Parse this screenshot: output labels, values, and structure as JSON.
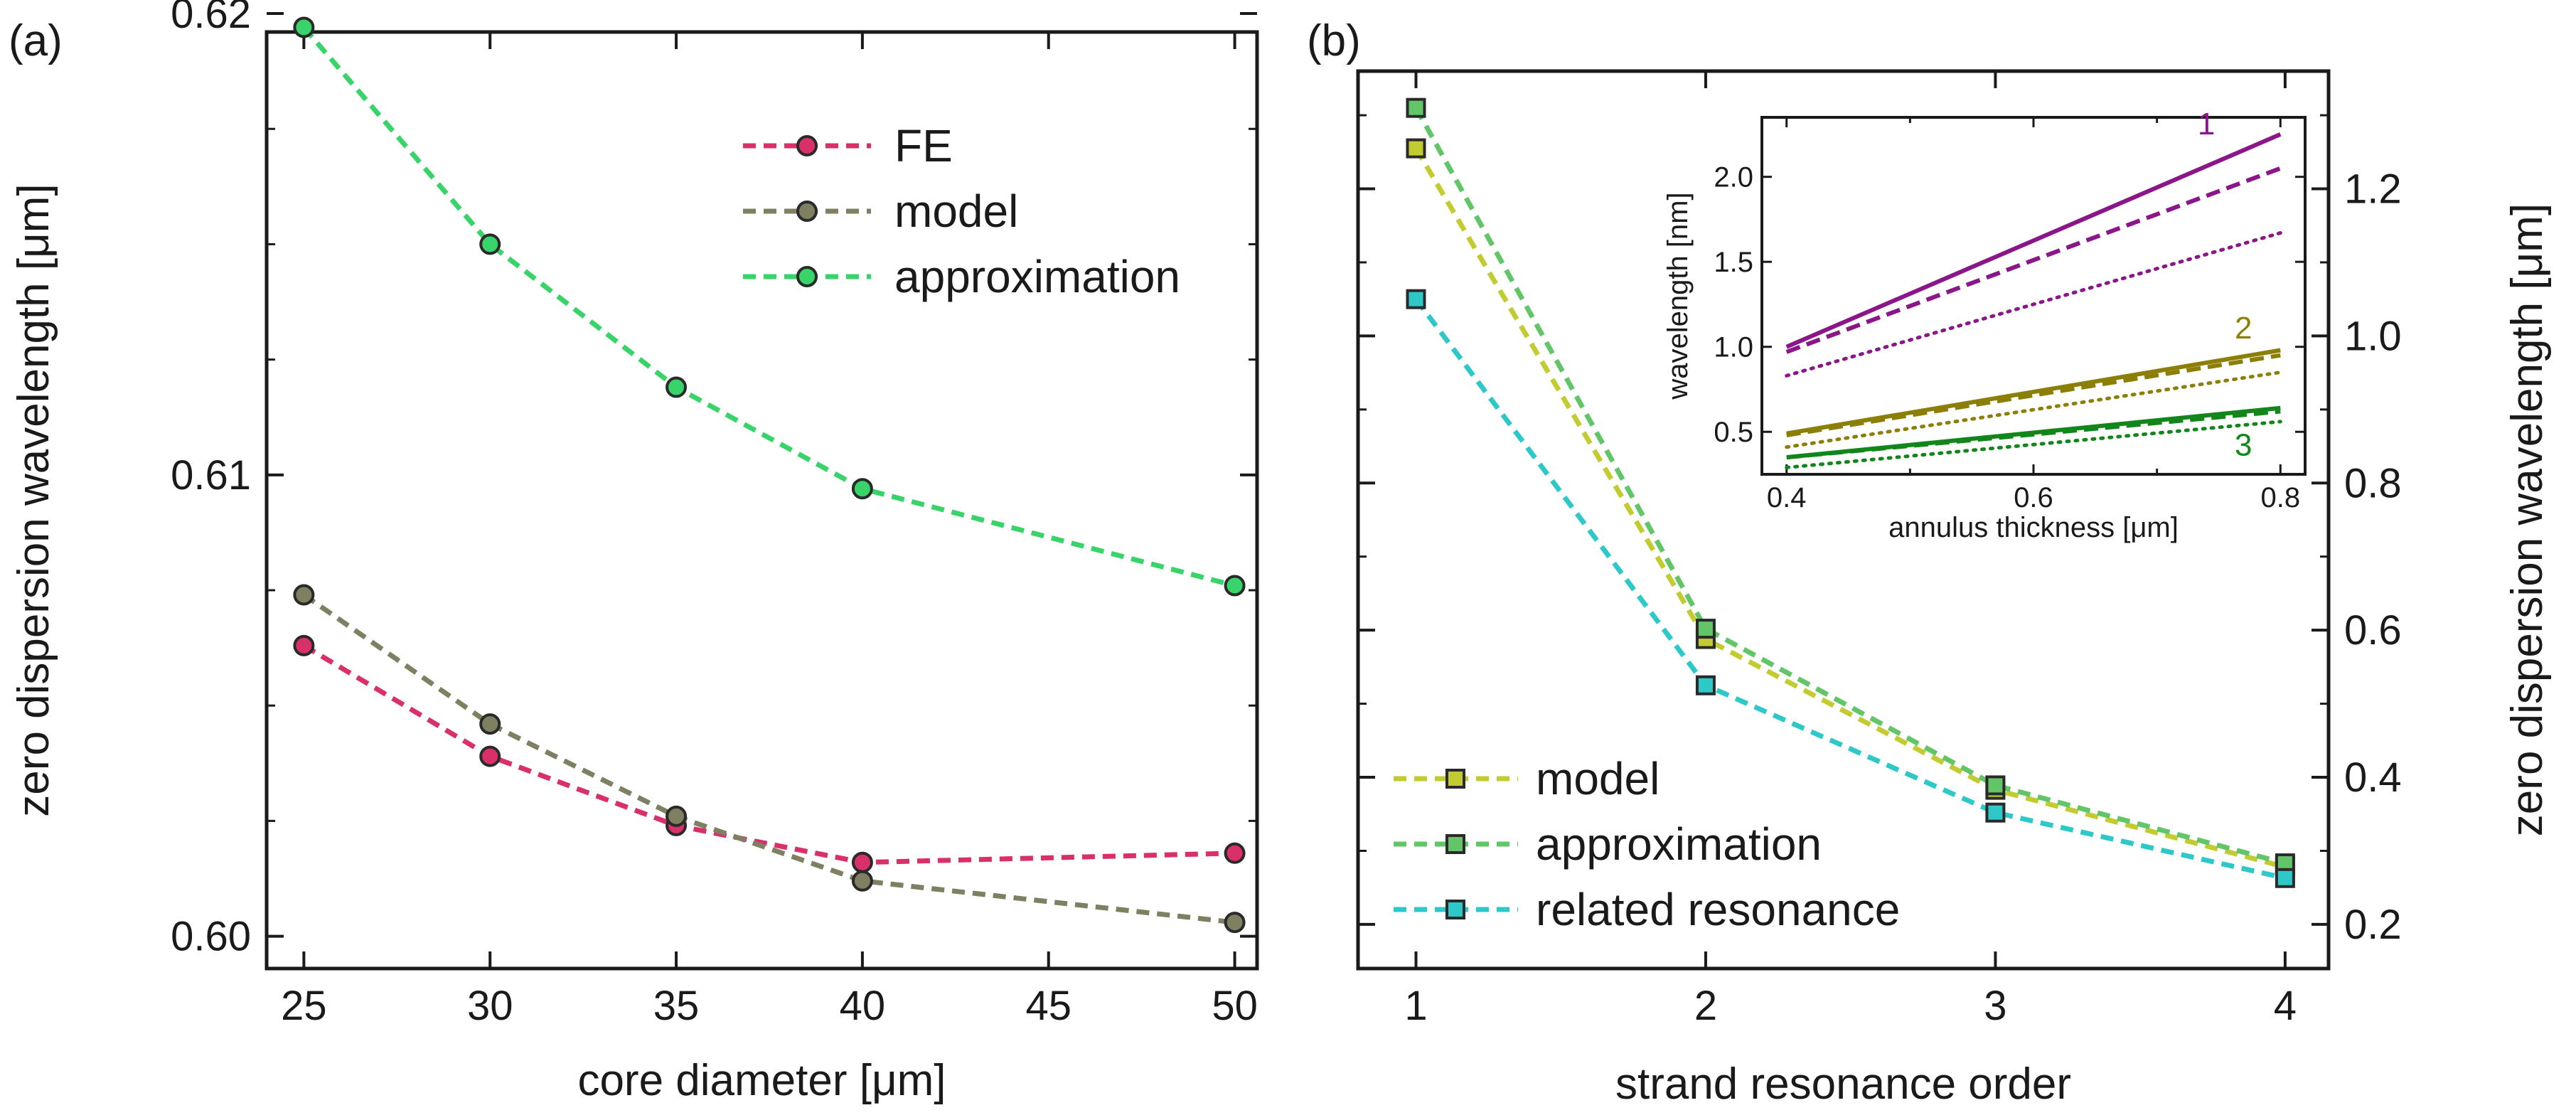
{
  "colors": {
    "fe": "#d9306a",
    "model_a": "#7f7f62",
    "approx_a": "#38d46a",
    "model_b": "#c2cc30",
    "approx_b": "#62c668",
    "resonance_b": "#2ec8c8",
    "inset_1": "#8a168a",
    "inset_2": "#8b7f08",
    "inset_3": "#12861a"
  },
  "chart_data": [
    {
      "panel": "(a)",
      "type": "line",
      "xlabel": "core diameter [μm]",
      "ylabel": "zero dispersion wavelength [μm]",
      "xlim": [
        24,
        50.6
      ],
      "ylim": [
        0.5993,
        0.6196
      ],
      "xticks": [
        25,
        30,
        35,
        40,
        45,
        50
      ],
      "xtick_labels": [
        "25",
        "30",
        "35",
        "40",
        "45",
        "50"
      ],
      "yticks": [
        0.6,
        0.61,
        0.62
      ],
      "ytick_labels": [
        "0.60",
        "0.61",
        "0.62"
      ],
      "legend_position": "top-right",
      "series": [
        {
          "name": "FE",
          "color_key": "fe",
          "x": [
            25,
            30,
            35,
            40,
            50
          ],
          "values": [
            0.6063,
            0.6039,
            0.6024,
            0.6016,
            0.6018
          ]
        },
        {
          "name": "model",
          "color_key": "model_a",
          "x": [
            25,
            30,
            35,
            40,
            50
          ],
          "values": [
            0.6074,
            0.6046,
            0.6026,
            0.6012,
            0.6003
          ]
        },
        {
          "name": "approximation",
          "color_key": "approx_a",
          "x": [
            25,
            30,
            35,
            40,
            50
          ],
          "values": [
            0.6197,
            0.615,
            0.6119,
            0.6097,
            0.6076
          ]
        }
      ]
    },
    {
      "panel": "(b)",
      "type": "line",
      "xlabel": "strand resonance order",
      "ylabel": "zero dispersion wavelength [μm]",
      "xlim": [
        0.8,
        4.15
      ],
      "ylim": [
        0.14,
        1.36
      ],
      "xticks": [
        1,
        2,
        3,
        4
      ],
      "xtick_labels": [
        "1",
        "2",
        "3",
        "4"
      ],
      "yticks": [
        0.2,
        0.4,
        0.6,
        0.8,
        1.0,
        1.2
      ],
      "ytick_labels": [
        "0.2",
        "0.4",
        "0.6",
        "0.8",
        "1.0",
        "1.2"
      ],
      "legend_position": "bottom-left",
      "series": [
        {
          "name": "model",
          "color_key": "model_b",
          "x": [
            1,
            2,
            3,
            4
          ],
          "values": [
            1.255,
            0.588,
            0.383,
            0.278
          ]
        },
        {
          "name": "approximation",
          "color_key": "approx_b",
          "x": [
            1,
            2,
            3,
            4
          ],
          "values": [
            1.31,
            0.602,
            0.389,
            0.283
          ]
        },
        {
          "name": "related resonance",
          "color_key": "resonance_b",
          "x": [
            1,
            2,
            3,
            4
          ],
          "values": [
            1.05,
            0.525,
            0.352,
            0.263
          ]
        }
      ]
    },
    {
      "panel": "(b) inset",
      "type": "line",
      "xlabel": "annulus thickness [μm]",
      "ylabel": "wavelength [nm]",
      "xlim": [
        0.38,
        0.82
      ],
      "ylim": [
        0.25,
        2.35
      ],
      "xticks": [
        0.4,
        0.6,
        0.8
      ],
      "xtick_labels": [
        "0.4",
        "0.6",
        "0.8"
      ],
      "yticks": [
        0.5,
        1.0,
        1.5,
        2.0
      ],
      "ytick_labels": [
        "0.5",
        "1.0",
        "1.5",
        "2.0"
      ],
      "curve_labels": [
        "1",
        "2",
        "3"
      ],
      "series": [
        {
          "name": "1 solid",
          "group": "1",
          "style": "solid",
          "color_key": "inset_1",
          "x": [
            0.4,
            0.8
          ],
          "values": [
            1.0,
            2.25
          ]
        },
        {
          "name": "1 dashed",
          "group": "1",
          "style": "dashed",
          "color_key": "inset_1",
          "x": [
            0.4,
            0.8
          ],
          "values": [
            0.97,
            2.05
          ]
        },
        {
          "name": "1 dotted",
          "group": "1",
          "style": "dotted",
          "color_key": "inset_1",
          "x": [
            0.4,
            0.8
          ],
          "values": [
            0.83,
            1.67
          ]
        },
        {
          "name": "2 solid",
          "group": "2",
          "style": "solid",
          "color_key": "inset_2",
          "x": [
            0.4,
            0.8
          ],
          "values": [
            0.49,
            0.98
          ]
        },
        {
          "name": "2 dashed",
          "group": "2",
          "style": "dashed",
          "color_key": "inset_2",
          "x": [
            0.4,
            0.8
          ],
          "values": [
            0.48,
            0.95
          ]
        },
        {
          "name": "2 dotted",
          "group": "2",
          "style": "dotted",
          "color_key": "inset_2",
          "x": [
            0.4,
            0.8
          ],
          "values": [
            0.41,
            0.85
          ]
        },
        {
          "name": "3 solid",
          "group": "3",
          "style": "solid",
          "color_key": "inset_3",
          "x": [
            0.4,
            0.8
          ],
          "values": [
            0.35,
            0.64
          ]
        },
        {
          "name": "3 dashed",
          "group": "3",
          "style": "dashed",
          "color_key": "inset_3",
          "x": [
            0.4,
            0.8
          ],
          "values": [
            0.35,
            0.62
          ]
        },
        {
          "name": "3 dotted",
          "group": "3",
          "style": "dotted",
          "color_key": "inset_3",
          "x": [
            0.4,
            0.8
          ],
          "values": [
            0.29,
            0.56
          ]
        }
      ]
    }
  ]
}
